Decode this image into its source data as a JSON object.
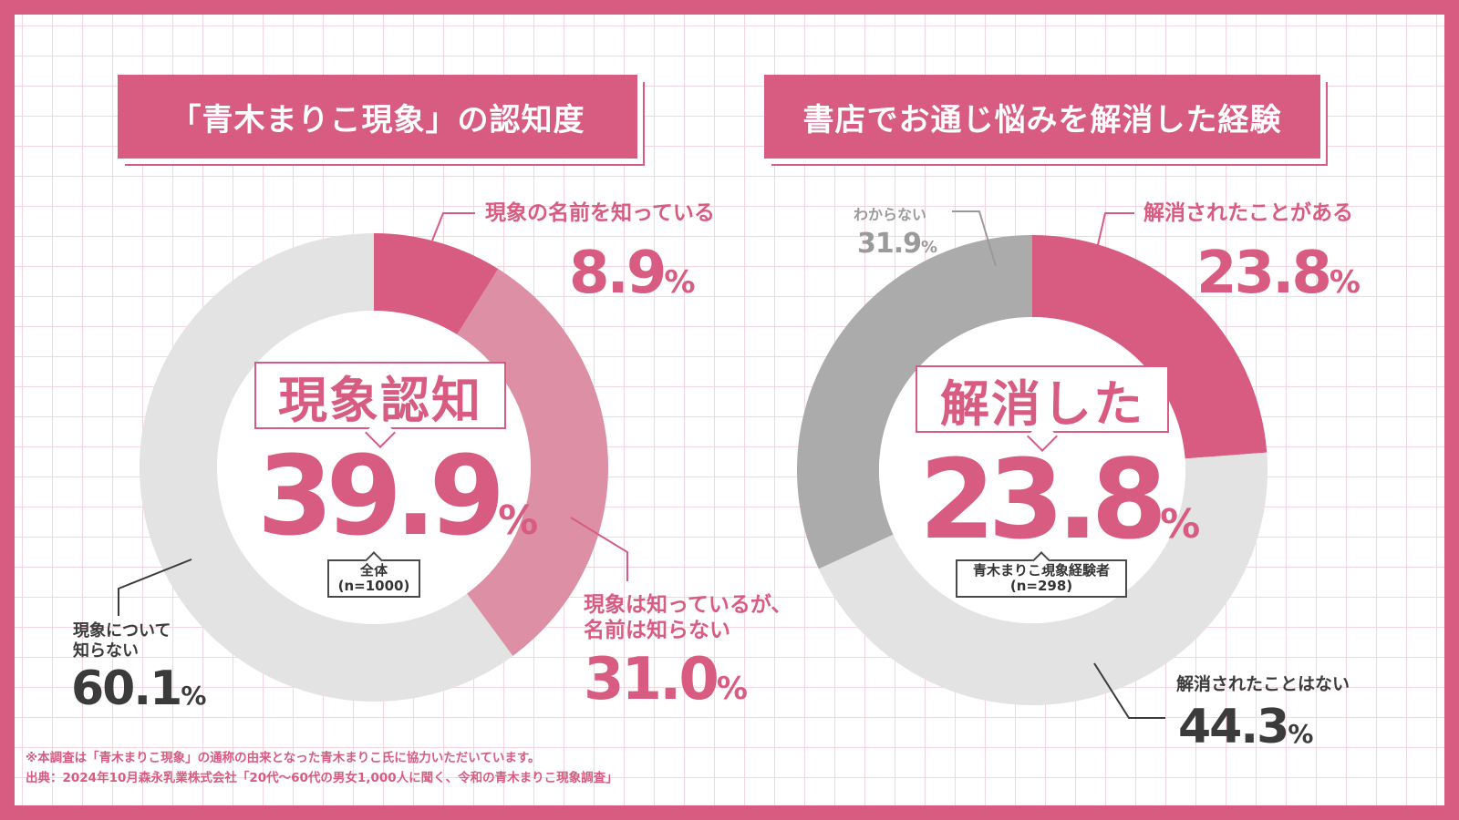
{
  "colors": {
    "brand": "#d85b82",
    "light_pink": "#dd8fa5",
    "light_grey": "#e3e3e3",
    "grey": "#ababab",
    "text_dark": "#3b3b3b"
  },
  "chart_data": [
    {
      "type": "donut",
      "title": "「青木まりこ現象」の認知度",
      "center_label": "現象認知",
      "center_value": "39.9",
      "center_unit": "%",
      "base": {
        "line1": "全体",
        "line2": "(n=1000)"
      },
      "slices": [
        {
          "name": "現象の名前を知っている",
          "value": 8.9,
          "value_text": "8.9",
          "unit": "%",
          "color": "#d85b82"
        },
        {
          "name": "現象は知っているが、名前は知らない",
          "line1": "現象は知っているが、",
          "line2": "名前は知らない",
          "value": 31.0,
          "value_text": "31.0",
          "unit": "%",
          "color": "#dd8fa5"
        },
        {
          "name": "現象について知らない",
          "line1": "現象について",
          "line2": "知らない",
          "value": 60.1,
          "value_text": "60.1",
          "unit": "%",
          "color": "#e3e3e3"
        }
      ]
    },
    {
      "type": "donut",
      "title": "書店でお通じ悩みを解消した経験",
      "center_label": "解消した",
      "center_value": "23.8",
      "center_unit": "%",
      "base": {
        "line1": "青木まりこ現象経験者",
        "line2": "(n=298)"
      },
      "slices": [
        {
          "name": "解消されたことがある",
          "value": 23.8,
          "value_text": "23.8",
          "unit": "%",
          "color": "#d85b82"
        },
        {
          "name": "解消されたことはない",
          "value": 44.3,
          "value_text": "44.3",
          "unit": "%",
          "color": "#e3e3e3"
        },
        {
          "name": "わからない",
          "value": 31.9,
          "value_text": "31.9",
          "unit": "%",
          "color": "#ababab"
        }
      ]
    }
  ],
  "footnotes": [
    "※本調査は「青木まりこ現象」の通称の由来となった青木まりこ氏に協力いただいています。",
    "出典：2024年10月森永乳業株式会社「20代〜60代の男女1,000人に聞く、令和の青木まりこ現象調査」"
  ]
}
